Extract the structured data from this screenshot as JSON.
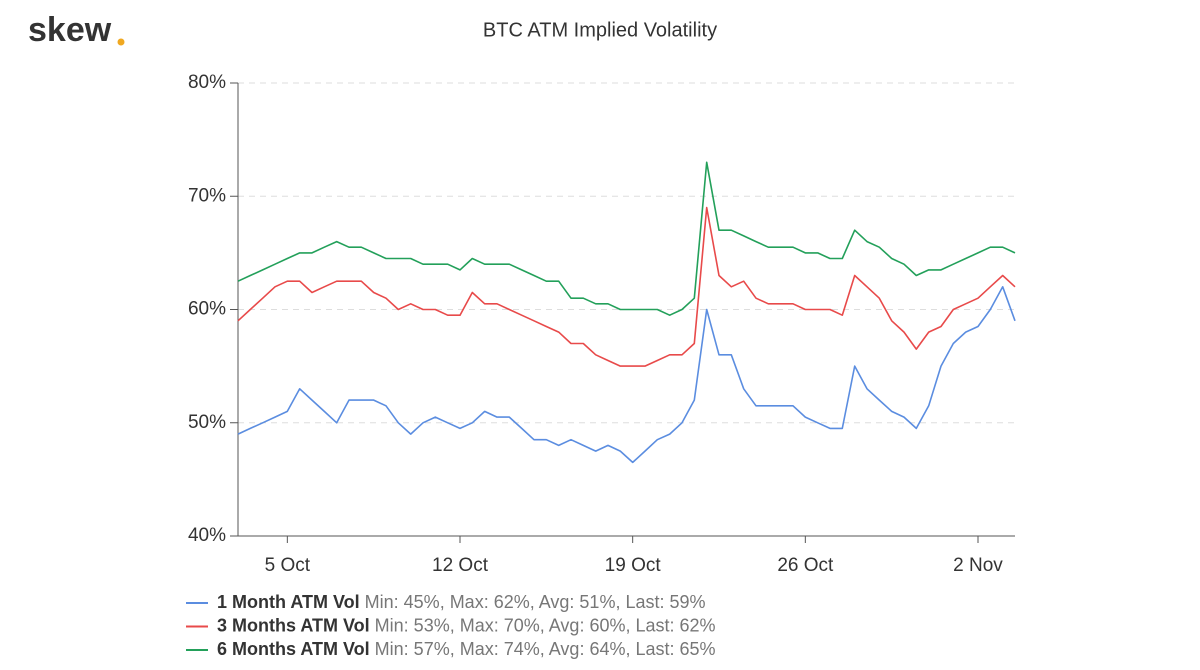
{
  "logo": "skew",
  "chart_data": {
    "type": "line",
    "title": "BTC ATM Implied Volatility",
    "categories": [
      null,
      null,
      null,
      null,
      "5 Oct",
      null,
      null,
      null,
      null,
      null,
      null,
      null,
      null,
      null,
      null,
      null,
      null,
      null,
      "12 Oct",
      null,
      null,
      null,
      null,
      null,
      null,
      null,
      null,
      null,
      null,
      null,
      null,
      null,
      "19 Oct",
      null,
      null,
      null,
      null,
      null,
      null,
      null,
      null,
      null,
      null,
      null,
      null,
      null,
      "26 Oct",
      null,
      null,
      null,
      null,
      null,
      null,
      null,
      null,
      null,
      null,
      null,
      null,
      null,
      "2 Nov",
      null,
      null,
      null
    ],
    "ylim": [
      40,
      80
    ],
    "yticks": [
      {
        "value": 40,
        "label": "40%"
      },
      {
        "value": 50,
        "label": "50%"
      },
      {
        "value": 60,
        "label": "60%"
      },
      {
        "value": 70,
        "label": "70%"
      },
      {
        "value": 80,
        "label": "80%"
      }
    ],
    "grid": true,
    "legend": "bottom",
    "series": [
      {
        "name": "1 Month ATM Vol",
        "color": "#5b8de0",
        "stats": "Min: 45%, Max: 62%, Avg: 51%, Last: 59%",
        "values": [
          49,
          49.5,
          50,
          50.5,
          51,
          53,
          52,
          51,
          50,
          52,
          52,
          52,
          51.5,
          50,
          49,
          50,
          50.5,
          50,
          49.5,
          50,
          51,
          50.5,
          50.5,
          49.5,
          48.5,
          48.5,
          48,
          48.5,
          48,
          47.5,
          48,
          47.5,
          46.5,
          47.5,
          48.5,
          49,
          50,
          52,
          60,
          56,
          56,
          53,
          51.5,
          51.5,
          51.5,
          51.5,
          50.5,
          50,
          49.5,
          49.5,
          55,
          53,
          52,
          51,
          50.5,
          49.5,
          51.5,
          55,
          57,
          58,
          58.5,
          60,
          62,
          59
        ]
      },
      {
        "name": "3 Months ATM Vol",
        "color": "#e84a4a",
        "stats": "Min: 53%, Max: 70%, Avg: 60%, Last: 62%",
        "values": [
          59,
          60,
          61,
          62,
          62.5,
          62.5,
          61.5,
          62,
          62.5,
          62.5,
          62.5,
          61.5,
          61,
          60,
          60.5,
          60,
          60,
          59.5,
          59.5,
          61.5,
          60.5,
          60.5,
          60,
          59.5,
          59,
          58.5,
          58,
          57,
          57,
          56,
          55.5,
          55,
          55,
          55,
          55.5,
          56,
          56,
          57,
          69,
          63,
          62,
          62.5,
          61,
          60.5,
          60.5,
          60.5,
          60,
          60,
          60,
          59.5,
          63,
          62,
          61,
          59,
          58,
          56.5,
          58,
          58.5,
          60,
          60.5,
          61,
          62,
          63,
          62
        ]
      },
      {
        "name": "6 Months ATM Vol",
        "color": "#23a05a",
        "stats": "Min: 57%, Max: 74%, Avg: 64%, Last: 65%",
        "values": [
          62.5,
          63,
          63.5,
          64,
          64.5,
          65,
          65,
          65.5,
          66,
          65.5,
          65.5,
          65,
          64.5,
          64.5,
          64.5,
          64,
          64,
          64,
          63.5,
          64.5,
          64,
          64,
          64,
          63.5,
          63,
          62.5,
          62.5,
          61,
          61,
          60.5,
          60.5,
          60,
          60,
          60,
          60,
          59.5,
          60,
          61,
          73,
          67,
          67,
          66.5,
          66,
          65.5,
          65.5,
          65.5,
          65,
          65,
          64.5,
          64.5,
          67,
          66,
          65.5,
          64.5,
          64,
          63,
          63.5,
          63.5,
          64,
          64.5,
          65,
          65.5,
          65.5,
          65
        ]
      }
    ]
  }
}
